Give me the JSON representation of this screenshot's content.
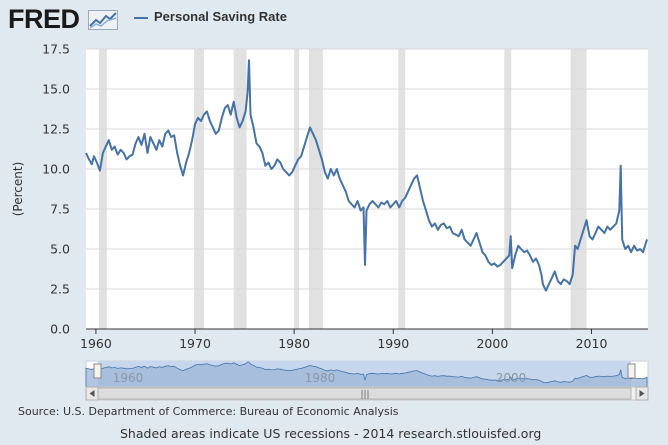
{
  "header": {
    "logo_text": "FRED",
    "logo_icon": "trend-chart-icon"
  },
  "chart_data": {
    "type": "line",
    "title": "",
    "ylabel": "(Percent)",
    "xlabel": "",
    "ylim": [
      0,
      17.5
    ],
    "xlim": [
      1959.0,
      2015.7
    ],
    "y_ticks": [
      "0.0",
      "2.5",
      "5.0",
      "7.5",
      "10.0",
      "12.5",
      "15.0",
      "17.5"
    ],
    "x_ticks": [
      "1960",
      "1970",
      "1980",
      "1990",
      "2000",
      "2010"
    ],
    "grid": "horizontal",
    "legend": "top-left",
    "series": [
      {
        "name": "Personal Saving Rate",
        "color": "#4572a7",
        "x": [
          1959.0,
          1959.3,
          1959.6,
          1959.8,
          1960.1,
          1960.4,
          1960.7,
          1961.0,
          1961.3,
          1961.6,
          1961.9,
          1962.2,
          1962.5,
          1962.8,
          1963.1,
          1963.4,
          1963.7,
          1964.0,
          1964.3,
          1964.6,
          1964.9,
          1965.2,
          1965.5,
          1965.8,
          1966.1,
          1966.4,
          1966.7,
          1967.0,
          1967.3,
          1967.6,
          1967.9,
          1968.2,
          1968.5,
          1968.8,
          1969.1,
          1969.4,
          1969.7,
          1970.0,
          1970.3,
          1970.6,
          1970.9,
          1971.2,
          1971.5,
          1971.8,
          1972.1,
          1972.4,
          1972.7,
          1973.0,
          1973.3,
          1973.6,
          1973.9,
          1974.2,
          1974.5,
          1974.8,
          1975.1,
          1975.3,
          1975.45,
          1975.6,
          1975.9,
          1976.2,
          1976.5,
          1976.8,
          1977.1,
          1977.4,
          1977.7,
          1978.0,
          1978.3,
          1978.6,
          1978.9,
          1979.2,
          1979.5,
          1979.8,
          1980.1,
          1980.4,
          1980.7,
          1981.0,
          1981.3,
          1981.6,
          1981.9,
          1982.2,
          1982.5,
          1982.8,
          1983.1,
          1983.4,
          1983.7,
          1984.0,
          1984.3,
          1984.6,
          1984.9,
          1985.2,
          1985.5,
          1985.8,
          1986.1,
          1986.4,
          1986.7,
          1987.0,
          1987.15,
          1987.3,
          1987.6,
          1987.9,
          1988.2,
          1988.5,
          1988.8,
          1989.1,
          1989.4,
          1989.7,
          1990.0,
          1990.3,
          1990.6,
          1990.9,
          1991.2,
          1991.5,
          1991.8,
          1992.1,
          1992.4,
          1992.7,
          1993.0,
          1993.3,
          1993.6,
          1993.9,
          1994.2,
          1994.5,
          1994.8,
          1995.1,
          1995.4,
          1995.7,
          1996.0,
          1996.3,
          1996.6,
          1996.9,
          1997.2,
          1997.5,
          1997.8,
          1998.1,
          1998.4,
          1998.7,
          1999.0,
          1999.3,
          1999.6,
          1999.9,
          2000.2,
          2000.5,
          2000.8,
          2001.1,
          2001.4,
          2001.7,
          2001.85,
          2002.0,
          2002.3,
          2002.6,
          2002.9,
          2003.2,
          2003.5,
          2003.8,
          2004.1,
          2004.4,
          2004.7,
          2004.95,
          2005.1,
          2005.4,
          2005.7,
          2006.0,
          2006.3,
          2006.6,
          2006.9,
          2007.2,
          2007.5,
          2007.8,
          2008.1,
          2008.35,
          2008.6,
          2008.9,
          2009.2,
          2009.5,
          2009.8,
          2010.1,
          2010.4,
          2010.7,
          2011.0,
          2011.3,
          2011.6,
          2011.9,
          2012.2,
          2012.5,
          2012.8,
          2012.95,
          2013.1,
          2013.4,
          2013.7,
          2014.0,
          2014.3,
          2014.6,
          2014.9,
          2015.2,
          2015.6
        ],
        "values": [
          11.0,
          10.6,
          10.3,
          10.8,
          10.4,
          9.9,
          11.0,
          11.4,
          11.8,
          11.2,
          11.4,
          10.9,
          11.2,
          11.0,
          10.6,
          10.8,
          10.9,
          11.6,
          12.0,
          11.5,
          12.2,
          11.0,
          12.0,
          11.6,
          11.2,
          11.8,
          11.4,
          12.2,
          12.4,
          12.0,
          12.1,
          11.0,
          10.2,
          9.6,
          10.4,
          11.0,
          11.8,
          12.8,
          13.2,
          13.0,
          13.4,
          13.6,
          13.0,
          12.6,
          12.2,
          12.4,
          13.2,
          13.8,
          14.0,
          13.4,
          14.2,
          13.2,
          12.6,
          13.0,
          13.6,
          14.8,
          16.8,
          13.4,
          12.6,
          11.6,
          11.4,
          11.0,
          10.2,
          10.4,
          10.0,
          10.2,
          10.6,
          10.4,
          10.0,
          9.8,
          9.6,
          9.8,
          10.2,
          10.6,
          10.8,
          11.4,
          12.0,
          12.6,
          12.2,
          11.8,
          11.2,
          10.6,
          9.8,
          9.4,
          10.0,
          9.6,
          10.0,
          9.4,
          9.0,
          8.6,
          8.0,
          7.8,
          7.6,
          8.0,
          7.4,
          7.6,
          4.0,
          7.4,
          7.8,
          8.0,
          7.8,
          7.6,
          7.9,
          7.8,
          8.0,
          7.6,
          7.8,
          8.0,
          7.6,
          8.0,
          8.2,
          8.6,
          9.0,
          9.4,
          9.6,
          8.8,
          8.0,
          7.4,
          6.8,
          6.4,
          6.6,
          6.2,
          6.5,
          6.6,
          6.3,
          6.4,
          6.0,
          5.9,
          5.8,
          6.2,
          5.6,
          5.4,
          5.2,
          5.6,
          6.0,
          5.4,
          4.8,
          4.6,
          4.2,
          4.0,
          4.1,
          3.9,
          4.0,
          4.2,
          4.4,
          4.6,
          5.8,
          3.8,
          4.6,
          5.2,
          5.0,
          4.8,
          4.9,
          4.6,
          4.2,
          4.4,
          4.0,
          3.4,
          2.8,
          2.4,
          2.8,
          3.2,
          3.6,
          3.0,
          2.8,
          3.1,
          3.0,
          2.8,
          3.4,
          5.2,
          5.0,
          5.6,
          6.2,
          6.8,
          5.8,
          5.6,
          6.0,
          6.4,
          6.2,
          6.0,
          6.4,
          6.2,
          6.4,
          6.6,
          7.4,
          10.2,
          5.6,
          5.0,
          5.2,
          4.8,
          5.2,
          4.9,
          5.0,
          4.8,
          5.6
        ]
      }
    ],
    "recessions": [
      [
        1960.3,
        1961.1
      ],
      [
        1969.9,
        1970.9
      ],
      [
        1973.9,
        1975.2
      ],
      [
        1980.0,
        1980.5
      ],
      [
        1981.5,
        1982.9
      ],
      [
        1990.5,
        1991.2
      ],
      [
        2001.2,
        2001.9
      ],
      [
        2007.9,
        2009.5
      ]
    ]
  },
  "navigator": {
    "labels": [
      "1960",
      "1980",
      "2000"
    ],
    "left_arrow": "left-arrow-icon",
    "right_arrow": "right-arrow-icon",
    "grip": "|||"
  },
  "footer": {
    "source": "Source: U.S. Department of Commerce: Bureau of Economic Analysis",
    "note": "Shaded areas indicate US recessions - 2014 research.stlouisfed.org"
  }
}
